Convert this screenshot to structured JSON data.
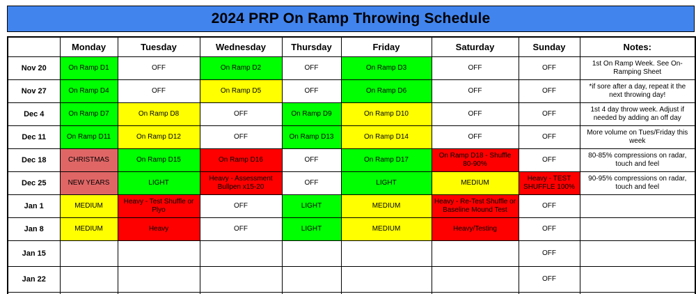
{
  "title": "2024 PRP On Ramp Throwing Schedule",
  "colors": {
    "banner_blue": "#4184ee",
    "green": "#00ff00",
    "yellow": "#ffff00",
    "red": "#ff0000",
    "holiday_salmon": "#e06666",
    "white": "#ffffff"
  },
  "columns": [
    "",
    "Monday",
    "Tuesday",
    "Wednesday",
    "Thursday",
    "Friday",
    "Saturday",
    "Sunday",
    "Notes:"
  ],
  "rows": [
    {
      "date": "Nov 20",
      "days": [
        {
          "text": "On Ramp D1",
          "color": "green"
        },
        {
          "text": "OFF",
          "color": "white"
        },
        {
          "text": "On Ramp D2",
          "color": "green"
        },
        {
          "text": "OFF",
          "color": "white"
        },
        {
          "text": "On Ramp D3",
          "color": "green"
        },
        {
          "text": "OFF",
          "color": "white"
        },
        {
          "text": "OFF",
          "color": "white"
        }
      ],
      "note": "1st On Ramp Week.  See On-Ramping Sheet"
    },
    {
      "date": "Nov 27",
      "days": [
        {
          "text": "On Ramp D4",
          "color": "green"
        },
        {
          "text": "OFF",
          "color": "white"
        },
        {
          "text": "On Ramp D5",
          "color": "yellow"
        },
        {
          "text": "OFF",
          "color": "white"
        },
        {
          "text": "On Ramp D6",
          "color": "green"
        },
        {
          "text": "OFF",
          "color": "white"
        },
        {
          "text": "OFF",
          "color": "white"
        }
      ],
      "note": "*if sore after a day, repeat it the next throwing day!"
    },
    {
      "date": "Dec 4",
      "days": [
        {
          "text": "On Ramp D7",
          "color": "green"
        },
        {
          "text": "On Ramp D8",
          "color": "yellow"
        },
        {
          "text": "OFF",
          "color": "white"
        },
        {
          "text": "On Ramp D9",
          "color": "green"
        },
        {
          "text": "On Ramp D10",
          "color": "yellow"
        },
        {
          "text": "OFF",
          "color": "white"
        },
        {
          "text": "OFF",
          "color": "white"
        }
      ],
      "note": "1st 4 day throw week.  Adjust if needed by adding an off day"
    },
    {
      "date": "Dec 11",
      "days": [
        {
          "text": "On Ramp D11",
          "color": "green"
        },
        {
          "text": "On Ramp D12",
          "color": "yellow"
        },
        {
          "text": "OFF",
          "color": "white"
        },
        {
          "text": "On Ramp D13",
          "color": "green"
        },
        {
          "text": "On Ramp D14",
          "color": "yellow"
        },
        {
          "text": "OFF",
          "color": "white"
        },
        {
          "text": "OFF",
          "color": "white"
        }
      ],
      "note": "More volume on Tues/Friday this week"
    },
    {
      "date": "Dec 18",
      "days": [
        {
          "text": "CHRISTMAS",
          "color": "holiday_salmon"
        },
        {
          "text": "On Ramp D15",
          "color": "green"
        },
        {
          "text": "On Ramp D16",
          "color": "red"
        },
        {
          "text": "OFF",
          "color": "white"
        },
        {
          "text": "On Ramp D17",
          "color": "green"
        },
        {
          "text": "On Ramp D18 - Shuffle 80-90%",
          "color": "red"
        },
        {
          "text": "OFF",
          "color": "white"
        }
      ],
      "note": "80-85% compressions on radar, touch and feel"
    },
    {
      "date": "Dec 25",
      "days": [
        {
          "text": "NEW YEARS",
          "color": "holiday_salmon"
        },
        {
          "text": "LIGHT",
          "color": "green"
        },
        {
          "text": "Heavy - Assessment Bullpen x15-20",
          "color": "red"
        },
        {
          "text": "OFF",
          "color": "white"
        },
        {
          "text": "LIGHT",
          "color": "green"
        },
        {
          "text": "MEDIUM",
          "color": "yellow"
        },
        {
          "text": "Heavy - TEST SHUFFLE 100%",
          "color": "red"
        }
      ],
      "note": "90-95% compressions on radar, touch and feel"
    },
    {
      "date": "Jan 1",
      "days": [
        {
          "text": "MEDIUM",
          "color": "yellow"
        },
        {
          "text": "Heavy - Test Shuffle or Plyo",
          "color": "red"
        },
        {
          "text": "OFF",
          "color": "white"
        },
        {
          "text": "LIGHT",
          "color": "green"
        },
        {
          "text": "MEDIUM",
          "color": "yellow"
        },
        {
          "text": "Heavy - Re-Test Shuffle or Baseline Mound Test",
          "color": "red"
        },
        {
          "text": "OFF",
          "color": "white"
        }
      ],
      "note": ""
    },
    {
      "date": "Jan 8",
      "days": [
        {
          "text": "MEDIUM",
          "color": "yellow"
        },
        {
          "text": "Heavy",
          "color": "red"
        },
        {
          "text": "OFF",
          "color": "white"
        },
        {
          "text": "LIGHT",
          "color": "green"
        },
        {
          "text": "MEDIUM",
          "color": "yellow"
        },
        {
          "text": "Heavy/Testing",
          "color": "red"
        },
        {
          "text": "OFF",
          "color": "white"
        }
      ],
      "note": ""
    },
    {
      "date": "Jan 15",
      "days": [
        {
          "text": "",
          "color": "white"
        },
        {
          "text": "",
          "color": "white"
        },
        {
          "text": "",
          "color": "white"
        },
        {
          "text": "",
          "color": "white"
        },
        {
          "text": "",
          "color": "white"
        },
        {
          "text": "",
          "color": "white"
        },
        {
          "text": "OFF",
          "color": "white"
        }
      ],
      "note": ""
    },
    {
      "date": "Jan 22",
      "days": [
        {
          "text": "",
          "color": "white"
        },
        {
          "text": "",
          "color": "white"
        },
        {
          "text": "",
          "color": "white"
        },
        {
          "text": "",
          "color": "white"
        },
        {
          "text": "",
          "color": "white"
        },
        {
          "text": "",
          "color": "white"
        },
        {
          "text": "OFF",
          "color": "white"
        }
      ],
      "note": ""
    },
    {
      "date": "",
      "days": [
        {
          "text": "",
          "color": "white"
        },
        {
          "text": "",
          "color": "white"
        },
        {
          "text": "",
          "color": "white"
        },
        {
          "text": "",
          "color": "white"
        },
        {
          "text": "",
          "color": "white"
        },
        {
          "text": "",
          "color": "white"
        },
        {
          "text": "",
          "color": "white"
        }
      ],
      "note": ""
    }
  ]
}
